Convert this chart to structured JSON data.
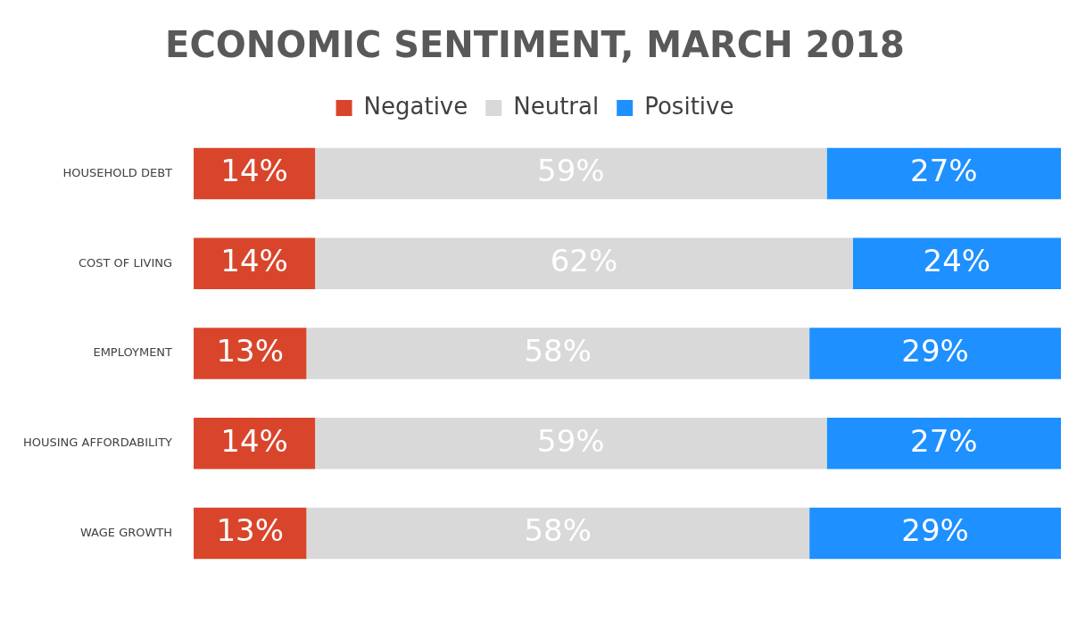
{
  "chart_data": {
    "type": "bar",
    "title": "ECONOMIC SENTIMENT, MARCH 2018",
    "orientation": "horizontal",
    "stacked": true,
    "legend": "top",
    "tick_labels": "y",
    "categories": [
      "HOUSEHOLD DEBT",
      "COST OF LIVING",
      "EMPLOYMENT",
      "HOUSING AFFORDABILITY",
      "WAGE GROWTH"
    ],
    "series": [
      {
        "name": "Negative",
        "color": "#d9452b",
        "values": [
          14,
          14,
          13,
          14,
          13
        ],
        "value_labels": [
          "14%",
          "14%",
          "13%",
          "14%",
          "13%"
        ]
      },
      {
        "name": "Neutral",
        "color": "#d9d9d9",
        "values": [
          59,
          62,
          58,
          59,
          58
        ],
        "value_labels": [
          "59%",
          "62%",
          "58%",
          "59%",
          "58%"
        ]
      },
      {
        "name": "Positive",
        "color": "#1e90ff",
        "values": [
          27,
          24,
          29,
          27,
          29
        ],
        "value_labels": [
          "27%",
          "24%",
          "29%",
          "27%",
          "29%"
        ]
      }
    ]
  }
}
